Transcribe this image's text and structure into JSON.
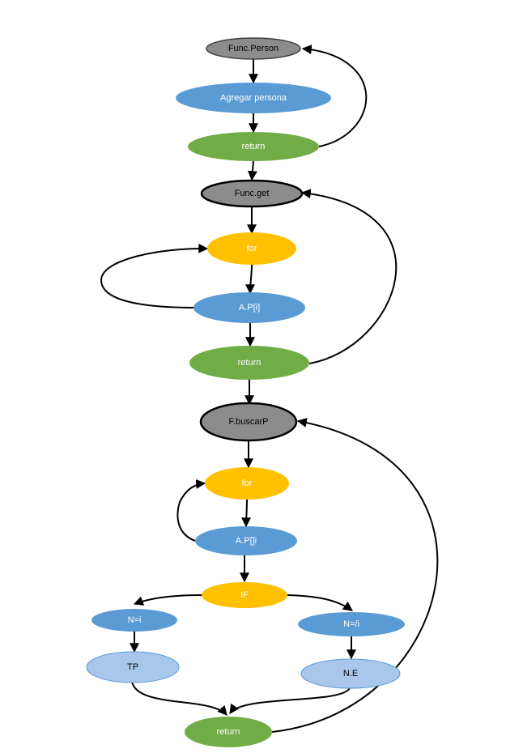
{
  "colors": {
    "gray": "#8c8c8c",
    "blue": "#5b9bd5",
    "light_blue": "#a9c7ea",
    "green": "#70ad47",
    "yellow": "#ffc000",
    "edge": "#000000"
  },
  "nodes": {
    "func_person": {
      "label": "Func.Person",
      "color": "gray",
      "text_color": "#000000"
    },
    "agregar_persona": {
      "label": "Agregar persona",
      "color": "blue",
      "text_color": "#ffffff"
    },
    "return_1": {
      "label": "return",
      "color": "green",
      "text_color": "#ffffff"
    },
    "func_get": {
      "label": "Func.get",
      "color": "gray",
      "text_color": "#000000"
    },
    "for_1": {
      "label": "for",
      "color": "yellow",
      "text_color": "#ffffff"
    },
    "ap_i": {
      "label": "A.P[i]",
      "color": "blue",
      "text_color": "#ffffff"
    },
    "return_2": {
      "label": "return",
      "color": "green",
      "text_color": "#ffffff"
    },
    "f_buscarp": {
      "label": "F.buscarP",
      "color": "gray",
      "text_color": "#000000"
    },
    "for_2": {
      "label": "for",
      "color": "yellow",
      "text_color": "#ffffff"
    },
    "ap_bi": {
      "label": "A.P[]i",
      "color": "blue",
      "text_color": "#ffffff"
    },
    "if": {
      "label": "IF",
      "color": "yellow",
      "text_color": "#ffffff"
    },
    "n_eq_i": {
      "label": "N=i",
      "color": "blue",
      "text_color": "#ffffff"
    },
    "n_neq_i": {
      "label": "N=/i",
      "color": "blue",
      "text_color": "#ffffff"
    },
    "tp": {
      "label": "TP",
      "color": "light_blue",
      "text_color": "#000000"
    },
    "ne": {
      "label": "N.E",
      "color": "light_blue",
      "text_color": "#000000"
    },
    "return_3": {
      "label": "return",
      "color": "green",
      "text_color": "#ffffff"
    }
  },
  "edges": [
    {
      "from": "func_person",
      "to": "agregar_persona"
    },
    {
      "from": "agregar_persona",
      "to": "return_1"
    },
    {
      "from": "return_1",
      "to": "func_person"
    },
    {
      "from": "return_1",
      "to": "func_get"
    },
    {
      "from": "func_get",
      "to": "for_1"
    },
    {
      "from": "for_1",
      "to": "ap_i"
    },
    {
      "from": "ap_i",
      "to": "for_1"
    },
    {
      "from": "ap_i",
      "to": "return_2"
    },
    {
      "from": "return_2",
      "to": "func_get"
    },
    {
      "from": "return_2",
      "to": "f_buscarp"
    },
    {
      "from": "f_buscarp",
      "to": "for_2"
    },
    {
      "from": "for_2",
      "to": "ap_bi"
    },
    {
      "from": "ap_bi",
      "to": "for_2"
    },
    {
      "from": "ap_bi",
      "to": "if"
    },
    {
      "from": "if",
      "to": "n_eq_i"
    },
    {
      "from": "if",
      "to": "n_neq_i"
    },
    {
      "from": "n_eq_i",
      "to": "tp"
    },
    {
      "from": "n_neq_i",
      "to": "ne"
    },
    {
      "from": "tp",
      "to": "return_3"
    },
    {
      "from": "ne",
      "to": "return_3"
    },
    {
      "from": "return_3",
      "to": "f_buscarp"
    }
  ]
}
